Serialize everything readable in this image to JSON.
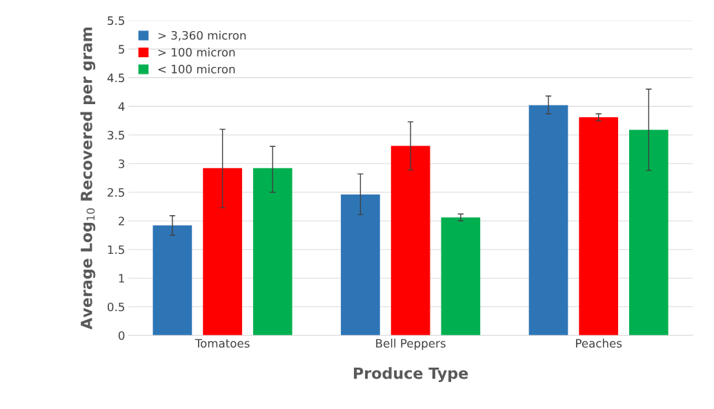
{
  "chart_data": {
    "type": "bar",
    "xlabel": "Produce Type",
    "ylabel": "Average Log$_{10}$ Recovered per gram",
    "categories": [
      "Tomatoes",
      "Bell Peppers",
      "Peaches"
    ],
    "series": [
      {
        "name": "> 3,360 micron",
        "color": "#2e75b6",
        "values": [
          1.92,
          2.46,
          4.02
        ],
        "errors": [
          [
            1.75,
            2.09
          ],
          [
            2.11,
            2.82
          ],
          [
            3.87,
            4.18
          ]
        ]
      },
      {
        "name": "> 100 micron",
        "color": "#ff0000",
        "values": [
          2.92,
          3.31,
          3.81
        ],
        "errors": [
          [
            2.23,
            3.6
          ],
          [
            2.89,
            3.73
          ],
          [
            3.75,
            3.87
          ]
        ]
      },
      {
        "name": "< 100 micron",
        "color": "#00b050",
        "values": [
          2.92,
          2.06,
          3.59
        ],
        "errors": [
          [
            2.5,
            3.3
          ],
          [
            2.0,
            2.12
          ],
          [
            2.88,
            4.3
          ]
        ]
      }
    ],
    "ylim": [
      0,
      5.5
    ],
    "yticks": [
      0,
      0.5,
      1,
      1.5,
      2,
      2.5,
      3,
      3.5,
      4,
      4.5,
      5,
      5.5
    ],
    "grid": "y",
    "legend": "top left"
  }
}
